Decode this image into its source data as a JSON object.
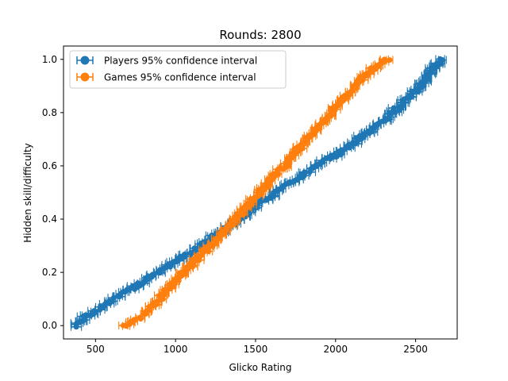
{
  "chart_data": {
    "type": "scatter",
    "title": "Rounds: 2800",
    "xlabel": "Glicko Rating",
    "ylabel": "Hidden skill/difficulty",
    "xlim": [
      300,
      2760
    ],
    "ylim": [
      -0.05,
      1.05
    ],
    "xticks": [
      500,
      1000,
      1500,
      2000,
      2500
    ],
    "yticks": [
      0.0,
      0.2,
      0.4,
      0.6,
      0.8,
      1.0
    ],
    "xtick_labels": [
      "500",
      "1000",
      "1500",
      "2000",
      "2500"
    ],
    "ytick_labels": [
      "0.0",
      "0.2",
      "0.4",
      "0.6",
      "0.8",
      "1.0"
    ],
    "grid": false,
    "legend_position": "top-left",
    "series": [
      {
        "name": "Players 95% confidence interval",
        "color": "#1f77b4",
        "error_bars": "horizontal",
        "points_rating": [
          380,
          480,
          620,
          780,
          950,
          1150,
          1350,
          1550,
          1800,
          2050,
          2300,
          2500,
          2660
        ],
        "points_skill": [
          0.0,
          0.05,
          0.1,
          0.16,
          0.22,
          0.3,
          0.38,
          0.47,
          0.57,
          0.66,
          0.77,
          0.88,
          1.0
        ],
        "ci_halfwidth": 30
      },
      {
        "name": "Games 95% confidence interval",
        "color": "#ff7f0e",
        "error_bars": "horizontal",
        "points_rating": [
          680,
          800,
          900,
          1000,
          1150,
          1300,
          1450,
          1600,
          1750,
          1900,
          2050,
          2200,
          2330
        ],
        "points_skill": [
          0.0,
          0.04,
          0.1,
          0.17,
          0.26,
          0.35,
          0.45,
          0.55,
          0.65,
          0.75,
          0.85,
          0.95,
          1.0
        ],
        "ci_halfwidth": 25
      }
    ]
  }
}
